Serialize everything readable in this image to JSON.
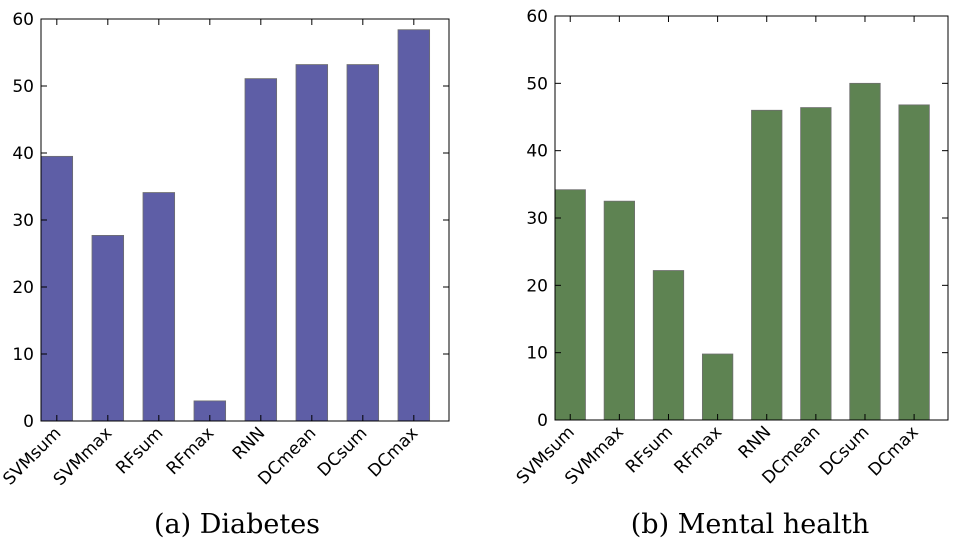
{
  "chart_data": [
    {
      "type": "bar",
      "title": "",
      "caption": "(a) Diabetes",
      "categories": [
        "SVMsum",
        "SVMmax",
        "RFsum",
        "RFmax",
        "RNN",
        "DCmean",
        "DCsum",
        "DCmax"
      ],
      "values": [
        39.5,
        27.7,
        34.1,
        3.0,
        51.1,
        53.2,
        53.2,
        58.4
      ],
      "ylim": [
        0,
        60
      ],
      "yticks": [
        0,
        10,
        20,
        30,
        40,
        50,
        60
      ],
      "xlabel": "",
      "ylabel": "",
      "grid": false,
      "color": "#5e5ea6"
    },
    {
      "type": "bar",
      "title": "",
      "caption": "(b) Mental health",
      "categories": [
        "SVMsum",
        "SVMmax",
        "RFsum",
        "RFmax",
        "RNN",
        "DCmean",
        "DCsum",
        "DCmax"
      ],
      "values": [
        34.2,
        32.5,
        22.2,
        9.8,
        46.0,
        46.4,
        50.0,
        46.8
      ],
      "ylim": [
        0,
        60
      ],
      "yticks": [
        0,
        10,
        20,
        30,
        40,
        50,
        60
      ],
      "xlabel": "",
      "ylabel": "",
      "grid": false,
      "color": "#5e8352"
    }
  ]
}
